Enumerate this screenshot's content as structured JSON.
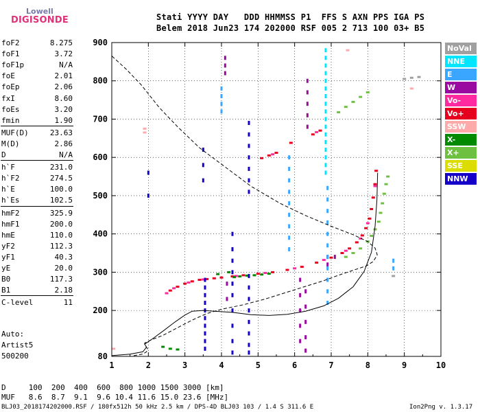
{
  "logo": {
    "line1": "Lowell",
    "line2": "DIGISONDE"
  },
  "header": {
    "labels": "Stati YYYY DAY   DDD HHMMSS P1  FFS S AXN PPS IGA PS",
    "values": "Belem 2018 Jun23 174 202000 RSF 005 2 713 100 03+ B5"
  },
  "params": [
    {
      "name": "foF2",
      "value": "8.275"
    },
    {
      "name": "foF1",
      "value": "3.72"
    },
    {
      "name": "foF1p",
      "value": "N/A"
    },
    {
      "name": "foE",
      "value": "2.01"
    },
    {
      "name": "foEp",
      "value": "2.06"
    },
    {
      "name": "fxI",
      "value": "8.60"
    },
    {
      "name": "foEs",
      "value": "3.20"
    },
    {
      "name": "fmin",
      "value": "1.90"
    },
    {
      "name": "MUF(D)",
      "value": "23.63"
    },
    {
      "name": "M(D)",
      "value": "2.86"
    },
    {
      "name": "D",
      "value": "N/A"
    },
    {
      "name": "h`F",
      "value": "231.0"
    },
    {
      "name": "h`F2",
      "value": "274.5"
    },
    {
      "name": "h`E",
      "value": "100.0"
    },
    {
      "name": "h`Es",
      "value": "102.5"
    },
    {
      "name": "hmF2",
      "value": "325.9"
    },
    {
      "name": "hmF1",
      "value": "200.0"
    },
    {
      "name": "hmE",
      "value": "110.0"
    },
    {
      "name": "yF2",
      "value": "112.3"
    },
    {
      "name": "yF1",
      "value": "40.3"
    },
    {
      "name": "yE",
      "value": "20.0"
    },
    {
      "name": "B0",
      "value": "117.3"
    },
    {
      "name": "B1",
      "value": "2.18"
    },
    {
      "name": "C-level",
      "value": "11"
    }
  ],
  "auto": {
    "line1": "Auto:",
    "line2": "Artist5",
    "line3": "500200"
  },
  "legend": [
    {
      "label": "NoVal",
      "color": "#a0a0a0"
    },
    {
      "label": "NNE",
      "color": "#00e6ff"
    },
    {
      "label": "E",
      "color": "#3aa6ff"
    },
    {
      "label": "W",
      "color": "#9b0aa0"
    },
    {
      "label": "Vo-",
      "color": "#ff2aa0"
    },
    {
      "label": "Vo+",
      "color": "#e6001e"
    },
    {
      "label": "SSW",
      "color": "#ffaaaa"
    },
    {
      "label": "X-",
      "color": "#008a00"
    },
    {
      "label": "X+",
      "color": "#6ec040"
    },
    {
      "label": "SSE",
      "color": "#dcdc00"
    },
    {
      "label": "NNW",
      "color": "#1400c8"
    }
  ],
  "footer": {
    "d_row": "D     100  200  400  600  800 1000 1500 3000 [km]",
    "muf_row": "MUF   8.6  8.7  9.1  9.6 10.4 11.6 15.0 23.6 [MHz]",
    "info": "BLJ03_2018174202000.RSF / 180fx512h 50 kHz 2.5 km / DPS-4D BLJ03 103 / 1.4 S 311.6 E",
    "version": "Ion2Png v. 1.3.17"
  },
  "chart_data": {
    "type": "scatter",
    "title": "",
    "xlabel": "",
    "ylabel": "",
    "xlim": [
      1,
      10
    ],
    "ylim": [
      80,
      900
    ],
    "xticks": [
      1,
      2,
      3,
      4,
      5,
      6,
      7,
      8,
      9,
      10
    ],
    "yticks": [
      80,
      200,
      300,
      400,
      500,
      600,
      700,
      800,
      900
    ],
    "grid": true,
    "legend_position": "right",
    "profile_curve": [
      [
        1.6,
        82
      ],
      [
        1.85,
        86
      ],
      [
        1.95,
        92
      ],
      [
        1.98,
        100
      ],
      [
        1.9,
        110
      ],
      [
        1.9,
        115
      ],
      [
        2.05,
        122
      ],
      [
        2.4,
        135
      ],
      [
        2.8,
        155
      ],
      [
        3.2,
        175
      ],
      [
        3.6,
        192
      ],
      [
        4.0,
        203
      ],
      [
        4.6,
        215
      ],
      [
        5.2,
        230
      ],
      [
        5.8,
        248
      ],
      [
        6.3,
        263
      ],
      [
        6.8,
        278
      ],
      [
        7.2,
        292
      ],
      [
        7.6,
        305
      ],
      [
        7.95,
        316
      ],
      [
        8.15,
        328
      ],
      [
        8.26,
        345
      ],
      [
        8.2,
        363
      ],
      [
        8.0,
        380
      ],
      [
        7.6,
        398
      ],
      [
        7.0,
        420
      ],
      [
        6.3,
        448
      ],
      [
        5.6,
        480
      ],
      [
        4.8,
        525
      ],
      [
        4.1,
        575
      ],
      [
        3.4,
        625
      ],
      [
        2.8,
        680
      ],
      [
        2.3,
        730
      ],
      [
        1.8,
        790
      ],
      [
        1.4,
        830
      ],
      [
        1.0,
        865
      ]
    ],
    "virtual_height_curve": [
      [
        1.0,
        82
      ],
      [
        1.5,
        86
      ],
      [
        1.85,
        92
      ],
      [
        1.95,
        104
      ],
      [
        1.9,
        112
      ],
      [
        2.1,
        125
      ],
      [
        2.4,
        146
      ],
      [
        2.7,
        168
      ],
      [
        3.0,
        188
      ],
      [
        3.2,
        198
      ],
      [
        3.5,
        200
      ],
      [
        3.8,
        198
      ],
      [
        4.3,
        195
      ],
      [
        4.8,
        189
      ],
      [
        5.3,
        187
      ],
      [
        5.8,
        190
      ],
      [
        6.3,
        198
      ],
      [
        6.8,
        212
      ],
      [
        7.2,
        232
      ],
      [
        7.6,
        262
      ],
      [
        7.9,
        302
      ],
      [
        8.1,
        352
      ],
      [
        8.2,
        420
      ],
      [
        8.25,
        490
      ],
      [
        8.27,
        560
      ]
    ],
    "series": [
      {
        "name": "Vo+",
        "points": [
          [
            2.6,
            252
          ],
          [
            2.8,
            262
          ],
          [
            3.0,
            270
          ],
          [
            3.2,
            276
          ],
          [
            3.4,
            280
          ],
          [
            3.6,
            282
          ],
          [
            3.8,
            284
          ],
          [
            4.0,
            286
          ],
          [
            4.3,
            289
          ],
          [
            4.6,
            292
          ],
          [
            5.0,
            296
          ],
          [
            5.4,
            300
          ],
          [
            5.8,
            306
          ],
          [
            6.2,
            314
          ],
          [
            6.6,
            325
          ],
          [
            7.0,
            338
          ],
          [
            7.3,
            350
          ],
          [
            7.5,
            362
          ],
          [
            7.7,
            378
          ],
          [
            7.85,
            396
          ],
          [
            7.95,
            415
          ],
          [
            8.05,
            440
          ],
          [
            8.1,
            465
          ],
          [
            8.15,
            495
          ],
          [
            8.2,
            530
          ],
          [
            8.23,
            565
          ],
          [
            5.1,
            598
          ],
          [
            5.3,
            605
          ],
          [
            5.5,
            612
          ],
          [
            5.9,
            638
          ],
          [
            6.5,
            660
          ],
          [
            6.7,
            670
          ]
        ]
      },
      {
        "name": "Vo-",
        "points": [
          [
            2.5,
            245
          ],
          [
            2.7,
            258
          ],
          [
            3.1,
            273
          ],
          [
            3.5,
            281
          ],
          [
            4.4,
            290
          ],
          [
            5.2,
            298
          ],
          [
            6.0,
            310
          ],
          [
            6.8,
            332
          ],
          [
            7.4,
            356
          ],
          [
            7.8,
            388
          ],
          [
            8.0,
            428
          ],
          [
            8.2,
            525
          ],
          [
            5.4,
            608
          ],
          [
            6.6,
            666
          ]
        ]
      },
      {
        "name": "X+",
        "points": [
          [
            7.4,
            340
          ],
          [
            7.6,
            350
          ],
          [
            7.8,
            362
          ],
          [
            8.0,
            380
          ],
          [
            8.1,
            395
          ],
          [
            8.2,
            412
          ],
          [
            8.3,
            432
          ],
          [
            8.35,
            455
          ],
          [
            8.4,
            480
          ],
          [
            8.45,
            505
          ],
          [
            8.5,
            530
          ],
          [
            8.55,
            550
          ],
          [
            7.2,
            718
          ],
          [
            7.4,
            732
          ],
          [
            7.6,
            745
          ],
          [
            7.8,
            758
          ],
          [
            8.0,
            770
          ]
        ]
      },
      {
        "name": "X-",
        "points": [
          [
            4.35,
            287
          ],
          [
            4.5,
            289
          ],
          [
            4.7,
            291
          ],
          [
            4.9,
            292
          ],
          [
            5.1,
            294
          ],
          [
            5.3,
            296
          ],
          [
            3.9,
            295
          ],
          [
            4.2,
            300
          ],
          [
            2.4,
            105
          ],
          [
            2.6,
            100
          ],
          [
            2.8,
            98
          ]
        ]
      },
      {
        "name": "W",
        "points": [
          [
            4.1,
            860
          ],
          [
            4.1,
            840
          ],
          [
            4.1,
            820
          ],
          [
            4.15,
            270
          ],
          [
            4.15,
            230
          ],
          [
            6.15,
            280
          ],
          [
            6.15,
            240
          ],
          [
            6.15,
            200
          ],
          [
            6.15,
            160
          ],
          [
            6.15,
            120
          ],
          [
            6.3,
            250
          ],
          [
            6.3,
            210
          ],
          [
            6.3,
            170
          ],
          [
            6.3,
            130
          ],
          [
            6.3,
            95
          ],
          [
            6.35,
            800
          ],
          [
            6.35,
            770
          ],
          [
            6.35,
            740
          ],
          [
            6.35,
            710
          ],
          [
            6.35,
            680
          ],
          [
            6.9,
            340
          ],
          [
            6.9,
            320
          ],
          [
            7.1,
            340
          ]
        ]
      },
      {
        "name": "NNW",
        "points": [
          [
            3.55,
            280
          ],
          [
            3.55,
            260
          ],
          [
            3.55,
            240
          ],
          [
            3.55,
            220
          ],
          [
            3.55,
            200
          ],
          [
            3.55,
            180
          ],
          [
            3.55,
            160
          ],
          [
            3.55,
            140
          ],
          [
            3.55,
            120
          ],
          [
            3.55,
            100
          ],
          [
            3.5,
            540
          ],
          [
            3.5,
            580
          ],
          [
            3.5,
            620
          ],
          [
            4.3,
            400
          ],
          [
            4.3,
            360
          ],
          [
            4.3,
            330
          ],
          [
            4.3,
            300
          ],
          [
            4.3,
            270
          ],
          [
            4.3,
            240
          ],
          [
            4.3,
            200
          ],
          [
            4.3,
            160
          ],
          [
            4.3,
            120
          ],
          [
            4.3,
            90
          ],
          [
            4.75,
            690
          ],
          [
            4.75,
            660
          ],
          [
            4.75,
            630
          ],
          [
            4.75,
            600
          ],
          [
            4.75,
            570
          ],
          [
            4.75,
            540
          ],
          [
            4.75,
            510
          ],
          [
            4.75,
            290
          ],
          [
            4.75,
            260
          ],
          [
            4.75,
            230
          ],
          [
            4.75,
            200
          ],
          [
            4.75,
            170
          ],
          [
            4.75,
            140
          ],
          [
            4.75,
            110
          ],
          [
            4.75,
            90
          ],
          [
            2.0,
            560
          ],
          [
            2.0,
            500
          ]
        ]
      },
      {
        "name": "E",
        "points": [
          [
            4.0,
            780
          ],
          [
            4.0,
            760
          ],
          [
            4.0,
            740
          ],
          [
            4.0,
            720
          ],
          [
            5.85,
            600
          ],
          [
            5.85,
            570
          ],
          [
            5.85,
            540
          ],
          [
            5.85,
            510
          ],
          [
            5.85,
            480
          ],
          [
            5.85,
            450
          ],
          [
            5.85,
            420
          ],
          [
            5.85,
            390
          ],
          [
            5.85,
            360
          ],
          [
            6.9,
            520
          ],
          [
            6.9,
            490
          ],
          [
            6.9,
            460
          ],
          [
            6.9,
            430
          ],
          [
            6.9,
            400
          ],
          [
            6.9,
            370
          ],
          [
            6.9,
            340
          ],
          [
            6.9,
            310
          ],
          [
            6.9,
            280
          ],
          [
            6.9,
            250
          ],
          [
            6.9,
            220
          ],
          [
            8.7,
            330
          ],
          [
            8.7,
            310
          ]
        ]
      },
      {
        "name": "NNE",
        "points": [
          [
            6.85,
            880
          ],
          [
            6.85,
            860
          ],
          [
            6.85,
            840
          ],
          [
            6.85,
            820
          ],
          [
            6.85,
            800
          ],
          [
            6.85,
            780
          ],
          [
            6.85,
            760
          ],
          [
            6.85,
            740
          ],
          [
            6.85,
            720
          ],
          [
            6.85,
            700
          ],
          [
            6.85,
            680
          ],
          [
            6.85,
            660
          ],
          [
            6.85,
            640
          ],
          [
            6.85,
            620
          ],
          [
            6.85,
            600
          ],
          [
            6.85,
            580
          ],
          [
            6.85,
            560
          ]
        ]
      },
      {
        "name": "SSW",
        "points": [
          [
            1.9,
            675
          ],
          [
            1.9,
            665
          ],
          [
            9.2,
            780
          ],
          [
            7.45,
            880
          ],
          [
            1.05,
            100
          ]
        ]
      },
      {
        "name": "NoVal",
        "points": [
          [
            9.0,
            805
          ],
          [
            9.2,
            808
          ],
          [
            9.4,
            810
          ],
          [
            8.7,
            290
          ]
        ]
      }
    ]
  }
}
